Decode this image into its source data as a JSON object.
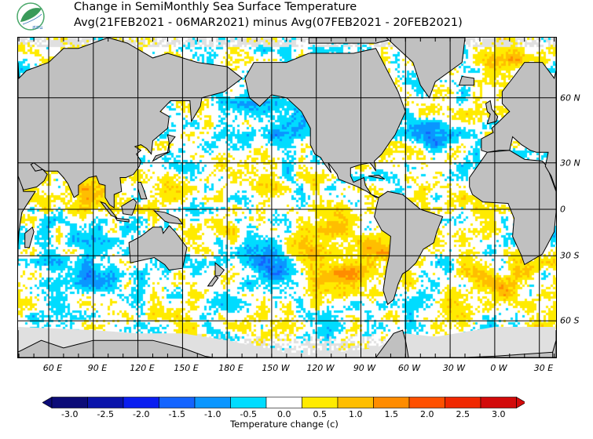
{
  "header": {
    "title_line1": "Change in SemiMonthly Sea Surface Temperature",
    "title_line2": "Avg(21FEB2021 - 06MAR2021) minus Avg(07FEB2021 - 20FEB2021)",
    "logo_text": "สสน"
  },
  "map": {
    "lon_labels": [
      "60 E",
      "90 E",
      "120 E",
      "150 E",
      "180 E",
      "150 W",
      "120 W",
      "90 W",
      "60 W",
      "30 W",
      "0 W",
      "30 E"
    ],
    "lat_labels": [
      "60 N",
      "30 N",
      "0",
      "30 S",
      "60 S"
    ],
    "land_color": "#c0c0c0",
    "ice_color": "#e0e0e0"
  },
  "colorbar": {
    "title": "Temperature change  (c)",
    "labels": [
      "-3.0",
      "-2.5",
      "-2.0",
      "-1.5",
      "-1.0",
      "-0.5",
      "0.0",
      "0.5",
      "1.0",
      "1.5",
      "2.0",
      "2.5",
      "3.0"
    ],
    "colors": [
      "#0c0c78",
      "#0a14aa",
      "#0a1ef0",
      "#1464ff",
      "#0a96ff",
      "#00dcff",
      "#ffffff",
      "#ffeb00",
      "#ffbe00",
      "#ff8c00",
      "#ff5000",
      "#f02800",
      "#d20a0a"
    ]
  }
}
